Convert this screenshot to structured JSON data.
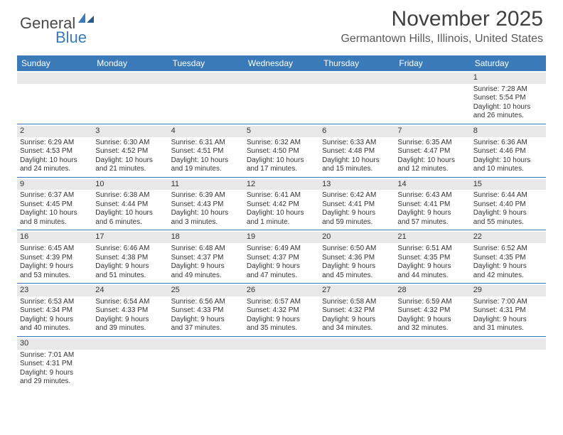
{
  "logo": {
    "general": "General",
    "blue": "Blue"
  },
  "header": {
    "month_title": "November 2025",
    "location": "Germantown Hills, Illinois, United States"
  },
  "colors": {
    "header_bar": "#3a7ab8",
    "daynum_bg": "#e8e8e8",
    "text": "#333333",
    "title_text": "#404040"
  },
  "day_names": [
    "Sunday",
    "Monday",
    "Tuesday",
    "Wednesday",
    "Thursday",
    "Friday",
    "Saturday"
  ],
  "weeks": [
    [
      null,
      null,
      null,
      null,
      null,
      null,
      {
        "n": "1",
        "sunrise": "Sunrise: 7:28 AM",
        "sunset": "Sunset: 5:54 PM",
        "day1": "Daylight: 10 hours",
        "day2": "and 26 minutes."
      }
    ],
    [
      {
        "n": "2",
        "sunrise": "Sunrise: 6:29 AM",
        "sunset": "Sunset: 4:53 PM",
        "day1": "Daylight: 10 hours",
        "day2": "and 24 minutes."
      },
      {
        "n": "3",
        "sunrise": "Sunrise: 6:30 AM",
        "sunset": "Sunset: 4:52 PM",
        "day1": "Daylight: 10 hours",
        "day2": "and 21 minutes."
      },
      {
        "n": "4",
        "sunrise": "Sunrise: 6:31 AM",
        "sunset": "Sunset: 4:51 PM",
        "day1": "Daylight: 10 hours",
        "day2": "and 19 minutes."
      },
      {
        "n": "5",
        "sunrise": "Sunrise: 6:32 AM",
        "sunset": "Sunset: 4:50 PM",
        "day1": "Daylight: 10 hours",
        "day2": "and 17 minutes."
      },
      {
        "n": "6",
        "sunrise": "Sunrise: 6:33 AM",
        "sunset": "Sunset: 4:48 PM",
        "day1": "Daylight: 10 hours",
        "day2": "and 15 minutes."
      },
      {
        "n": "7",
        "sunrise": "Sunrise: 6:35 AM",
        "sunset": "Sunset: 4:47 PM",
        "day1": "Daylight: 10 hours",
        "day2": "and 12 minutes."
      },
      {
        "n": "8",
        "sunrise": "Sunrise: 6:36 AM",
        "sunset": "Sunset: 4:46 PM",
        "day1": "Daylight: 10 hours",
        "day2": "and 10 minutes."
      }
    ],
    [
      {
        "n": "9",
        "sunrise": "Sunrise: 6:37 AM",
        "sunset": "Sunset: 4:45 PM",
        "day1": "Daylight: 10 hours",
        "day2": "and 8 minutes."
      },
      {
        "n": "10",
        "sunrise": "Sunrise: 6:38 AM",
        "sunset": "Sunset: 4:44 PM",
        "day1": "Daylight: 10 hours",
        "day2": "and 6 minutes."
      },
      {
        "n": "11",
        "sunrise": "Sunrise: 6:39 AM",
        "sunset": "Sunset: 4:43 PM",
        "day1": "Daylight: 10 hours",
        "day2": "and 3 minutes."
      },
      {
        "n": "12",
        "sunrise": "Sunrise: 6:41 AM",
        "sunset": "Sunset: 4:42 PM",
        "day1": "Daylight: 10 hours",
        "day2": "and 1 minute."
      },
      {
        "n": "13",
        "sunrise": "Sunrise: 6:42 AM",
        "sunset": "Sunset: 4:41 PM",
        "day1": "Daylight: 9 hours",
        "day2": "and 59 minutes."
      },
      {
        "n": "14",
        "sunrise": "Sunrise: 6:43 AM",
        "sunset": "Sunset: 4:41 PM",
        "day1": "Daylight: 9 hours",
        "day2": "and 57 minutes."
      },
      {
        "n": "15",
        "sunrise": "Sunrise: 6:44 AM",
        "sunset": "Sunset: 4:40 PM",
        "day1": "Daylight: 9 hours",
        "day2": "and 55 minutes."
      }
    ],
    [
      {
        "n": "16",
        "sunrise": "Sunrise: 6:45 AM",
        "sunset": "Sunset: 4:39 PM",
        "day1": "Daylight: 9 hours",
        "day2": "and 53 minutes."
      },
      {
        "n": "17",
        "sunrise": "Sunrise: 6:46 AM",
        "sunset": "Sunset: 4:38 PM",
        "day1": "Daylight: 9 hours",
        "day2": "and 51 minutes."
      },
      {
        "n": "18",
        "sunrise": "Sunrise: 6:48 AM",
        "sunset": "Sunset: 4:37 PM",
        "day1": "Daylight: 9 hours",
        "day2": "and 49 minutes."
      },
      {
        "n": "19",
        "sunrise": "Sunrise: 6:49 AM",
        "sunset": "Sunset: 4:37 PM",
        "day1": "Daylight: 9 hours",
        "day2": "and 47 minutes."
      },
      {
        "n": "20",
        "sunrise": "Sunrise: 6:50 AM",
        "sunset": "Sunset: 4:36 PM",
        "day1": "Daylight: 9 hours",
        "day2": "and 45 minutes."
      },
      {
        "n": "21",
        "sunrise": "Sunrise: 6:51 AM",
        "sunset": "Sunset: 4:35 PM",
        "day1": "Daylight: 9 hours",
        "day2": "and 44 minutes."
      },
      {
        "n": "22",
        "sunrise": "Sunrise: 6:52 AM",
        "sunset": "Sunset: 4:35 PM",
        "day1": "Daylight: 9 hours",
        "day2": "and 42 minutes."
      }
    ],
    [
      {
        "n": "23",
        "sunrise": "Sunrise: 6:53 AM",
        "sunset": "Sunset: 4:34 PM",
        "day1": "Daylight: 9 hours",
        "day2": "and 40 minutes."
      },
      {
        "n": "24",
        "sunrise": "Sunrise: 6:54 AM",
        "sunset": "Sunset: 4:33 PM",
        "day1": "Daylight: 9 hours",
        "day2": "and 39 minutes."
      },
      {
        "n": "25",
        "sunrise": "Sunrise: 6:56 AM",
        "sunset": "Sunset: 4:33 PM",
        "day1": "Daylight: 9 hours",
        "day2": "and 37 minutes."
      },
      {
        "n": "26",
        "sunrise": "Sunrise: 6:57 AM",
        "sunset": "Sunset: 4:32 PM",
        "day1": "Daylight: 9 hours",
        "day2": "and 35 minutes."
      },
      {
        "n": "27",
        "sunrise": "Sunrise: 6:58 AM",
        "sunset": "Sunset: 4:32 PM",
        "day1": "Daylight: 9 hours",
        "day2": "and 34 minutes."
      },
      {
        "n": "28",
        "sunrise": "Sunrise: 6:59 AM",
        "sunset": "Sunset: 4:32 PM",
        "day1": "Daylight: 9 hours",
        "day2": "and 32 minutes."
      },
      {
        "n": "29",
        "sunrise": "Sunrise: 7:00 AM",
        "sunset": "Sunset: 4:31 PM",
        "day1": "Daylight: 9 hours",
        "day2": "and 31 minutes."
      }
    ],
    [
      {
        "n": "30",
        "sunrise": "Sunrise: 7:01 AM",
        "sunset": "Sunset: 4:31 PM",
        "day1": "Daylight: 9 hours",
        "day2": "and 29 minutes."
      },
      null,
      null,
      null,
      null,
      null,
      null
    ]
  ]
}
